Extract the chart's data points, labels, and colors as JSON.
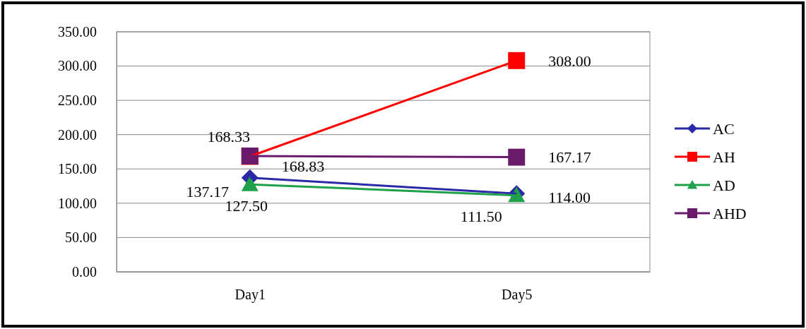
{
  "chart_data": {
    "type": "line",
    "categories": [
      "Day1",
      "Day5"
    ],
    "series": [
      {
        "name": "AC",
        "color": "#2a2aa8",
        "marker": "diamond",
        "values": [
          137.17,
          114.0
        ],
        "value_labels": [
          "137.17",
          "114.00"
        ]
      },
      {
        "name": "AH",
        "color": "#ff0000",
        "marker": "square",
        "values": [
          168.33,
          308.0
        ],
        "value_labels": [
          "168.33",
          "308.00"
        ]
      },
      {
        "name": "AD",
        "color": "#1fa04a",
        "marker": "triangle",
        "values": [
          127.5,
          111.5
        ],
        "value_labels": [
          "127.50",
          "111.50"
        ]
      },
      {
        "name": "AHD",
        "color": "#6a1a6a",
        "marker": "square",
        "values": [
          168.83,
          167.17
        ],
        "value_labels": [
          "168.83",
          "167.17"
        ]
      }
    ],
    "ylim": [
      0,
      350
    ],
    "yticks": [
      {
        "value": 0,
        "label": "0.00"
      },
      {
        "value": 50,
        "label": "50.00"
      },
      {
        "value": 100,
        "label": "100.00"
      },
      {
        "value": 150,
        "label": "150.00"
      },
      {
        "value": 200,
        "label": "200.00"
      },
      {
        "value": 250,
        "label": "250.00"
      },
      {
        "value": 300,
        "label": "300.00"
      },
      {
        "value": 350,
        "label": "350.00"
      }
    ],
    "grid": "y",
    "legend": "right"
  }
}
